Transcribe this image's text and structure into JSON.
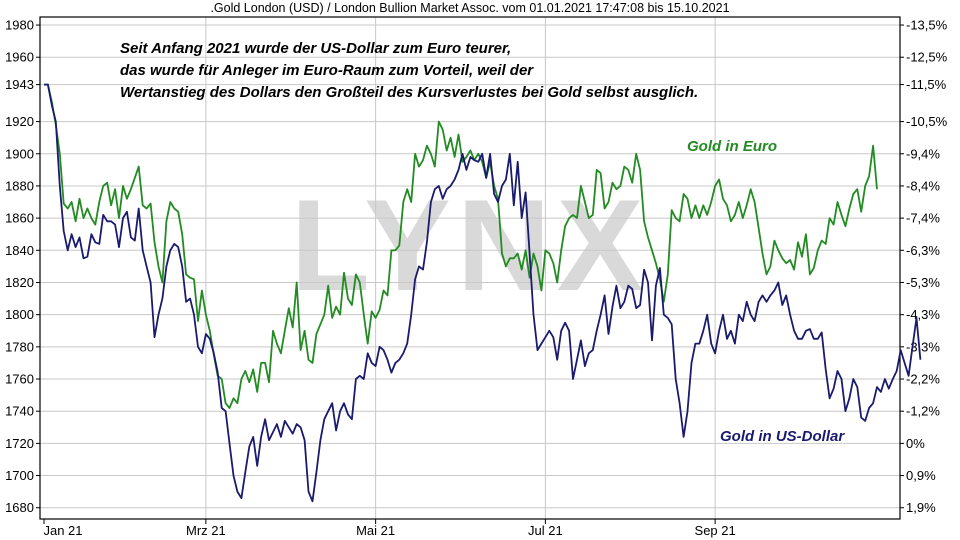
{
  "chart_data": {
    "type": "line",
    "title": ".Gold London (USD) / London Bullion Market Assoc. vom 01.01.2021 17:47:08 bis 15.10.2021",
    "annotation_lines": [
      "Seit Anfang 2021 wurde der US-Dollar zum Euro teurer,",
      "das wurde für Anleger im Euro-Raum zum Vorteil, weil der",
      "Wertanstieg des Dollars den Großteil des Kursverlustes bei Gold selbst ausglich."
    ],
    "watermark": "LYNX",
    "x_tick_labels": [
      "Jan 21",
      "Mrz 21",
      "Mai 21",
      "Jul 21",
      "Sep 21"
    ],
    "x_tick_index": [
      0,
      41,
      84,
      127,
      170
    ],
    "y_left": {
      "ticks": [
        1680,
        1700,
        1720,
        1740,
        1760,
        1780,
        1800,
        1820,
        1840,
        1860,
        1880,
        1900,
        1920,
        1943,
        1960,
        1980
      ],
      "lim": [
        1673,
        1985
      ]
    },
    "y_right": {
      "ticks": [
        "1,9%",
        "0,9%",
        "0%",
        "-1,2%",
        "-2,2%",
        "-3,3%",
        "-4,3%",
        "-5,3%",
        "-6,3%",
        "-7,4%",
        "-8,4%",
        "-9,4%",
        "-10,5%",
        "-11,5%",
        "-12,5%",
        "-13,5%"
      ]
    },
    "grid": true,
    "series": [
      {
        "name": "Gold in Euro",
        "color": "#228b22",
        "values": [
          1943,
          1943,
          1932,
          1918,
          1900,
          1869,
          1866,
          1870,
          1858,
          1872,
          1860,
          1866,
          1860,
          1856,
          1870,
          1880,
          1882,
          1868,
          1878,
          1860,
          1880,
          1872,
          1878,
          1885,
          1892,
          1868,
          1866,
          1869,
          1845,
          1830,
          1820,
          1858,
          1870,
          1866,
          1864,
          1850,
          1825,
          1823,
          1822,
          1796,
          1815,
          1800,
          1790,
          1775,
          1762,
          1760,
          1745,
          1742,
          1748,
          1745,
          1760,
          1765,
          1758,
          1766,
          1752,
          1770,
          1770,
          1758,
          1790,
          1782,
          1776,
          1790,
          1804,
          1792,
          1820,
          1778,
          1790,
          1772,
          1770,
          1788,
          1794,
          1800,
          1818,
          1798,
          1805,
          1800,
          1826,
          1810,
          1806,
          1825,
          1820,
          1800,
          1782,
          1802,
          1798,
          1803,
          1815,
          1812,
          1840,
          1840,
          1843,
          1870,
          1878,
          1870,
          1900,
          1892,
          1896,
          1905,
          1900,
          1892,
          1920,
          1915,
          1902,
          1910,
          1898,
          1912,
          1895,
          1898,
          1902,
          1896,
          1900,
          1895,
          1885,
          1895,
          1880,
          1872,
          1838,
          1830,
          1835,
          1835,
          1838,
          1828,
          1840,
          1823,
          1838,
          1830,
          1815,
          1840,
          1838,
          1832,
          1820,
          1840,
          1855,
          1860,
          1862,
          1860,
          1880,
          1870,
          1860,
          1862,
          1890,
          1888,
          1866,
          1870,
          1882,
          1878,
          1880,
          1892,
          1890,
          1882,
          1900,
          1890,
          1858,
          1848,
          1840,
          1832,
          1822,
          1808,
          1825,
          1865,
          1860,
          1858,
          1875,
          1872,
          1860,
          1868,
          1860,
          1868,
          1862,
          1870,
          1880,
          1884,
          1872,
          1868,
          1858,
          1862,
          1870,
          1860,
          1868,
          1878,
          1870,
          1854,
          1838,
          1825,
          1830,
          1846,
          1840,
          1835,
          1832,
          1834,
          1828,
          1845,
          1836,
          1850,
          1825,
          1829,
          1840,
          1846,
          1844,
          1860,
          1856,
          1870,
          1862,
          1855,
          1866,
          1875,
          1878,
          1864,
          1880,
          1886,
          1905,
          1878
        ]
      },
      {
        "name": "Gold in US-Dollar",
        "color": "#1a1a6e",
        "values": [
          1943,
          1943,
          1930,
          1920,
          1880,
          1852,
          1840,
          1850,
          1842,
          1848,
          1835,
          1836,
          1850,
          1845,
          1844,
          1862,
          1858,
          1858,
          1856,
          1842,
          1860,
          1864,
          1848,
          1846,
          1866,
          1840,
          1830,
          1820,
          1786,
          1800,
          1810,
          1830,
          1840,
          1844,
          1842,
          1830,
          1808,
          1810,
          1800,
          1780,
          1776,
          1788,
          1785,
          1776,
          1764,
          1742,
          1740,
          1720,
          1700,
          1690,
          1686,
          1702,
          1718,
          1724,
          1706,
          1724,
          1735,
          1722,
          1727,
          1732,
          1724,
          1734,
          1730,
          1726,
          1732,
          1730,
          1722,
          1690,
          1684,
          1702,
          1722,
          1735,
          1740,
          1745,
          1728,
          1740,
          1745,
          1738,
          1735,
          1760,
          1762,
          1760,
          1776,
          1770,
          1768,
          1780,
          1778,
          1772,
          1764,
          1770,
          1772,
          1776,
          1782,
          1800,
          1822,
          1830,
          1828,
          1845,
          1870,
          1878,
          1880,
          1872,
          1878,
          1880,
          1884,
          1890,
          1900,
          1890,
          1898,
          1896,
          1895,
          1900,
          1885,
          1900,
          1875,
          1870,
          1880,
          1884,
          1900,
          1868,
          1895,
          1860,
          1876,
          1838,
          1800,
          1778,
          1782,
          1786,
          1790,
          1786,
          1772,
          1790,
          1795,
          1790,
          1760,
          1772,
          1784,
          1768,
          1776,
          1778,
          1790,
          1800,
          1812,
          1788,
          1805,
          1818,
          1804,
          1808,
          1818,
          1816,
          1804,
          1806,
          1828,
          1820,
          1784,
          1818,
          1829,
          1800,
          1798,
          1794,
          1760,
          1745,
          1724,
          1740,
          1770,
          1782,
          1782,
          1790,
          1800,
          1782,
          1776,
          1790,
          1800,
          1785,
          1790,
          1782,
          1800,
          1796,
          1808,
          1800,
          1796,
          1808,
          1812,
          1808,
          1812,
          1815,
          1820,
          1806,
          1812,
          1800,
          1790,
          1785,
          1785,
          1790,
          1791,
          1785,
          1785,
          1789,
          1766,
          1748,
          1754,
          1765,
          1760,
          1740,
          1748,
          1760,
          1755,
          1736,
          1734,
          1742,
          1745,
          1755,
          1752,
          1760,
          1754,
          1760,
          1765,
          1778,
          1770,
          1762,
          1780,
          1798,
          1772
        ]
      }
    ]
  }
}
